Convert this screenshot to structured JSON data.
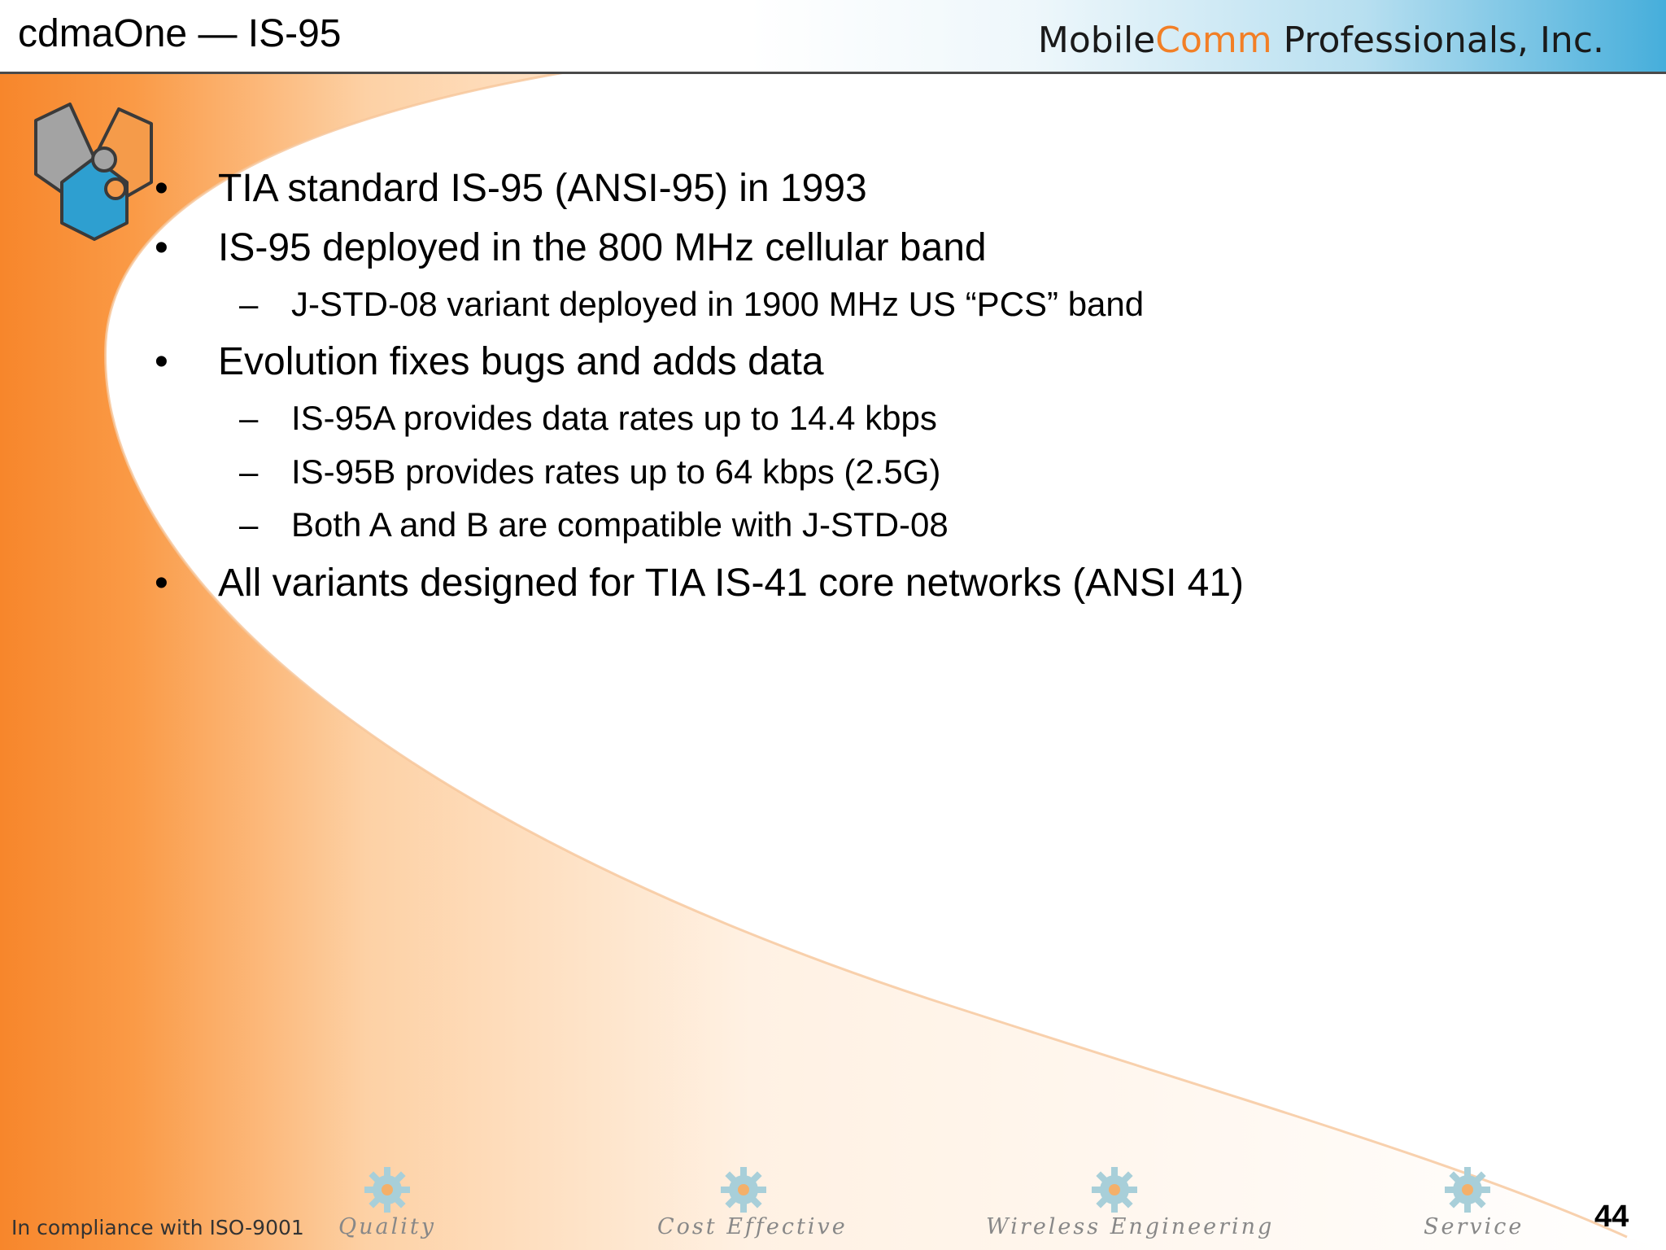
{
  "header": {
    "title": "cdmaOne — IS-95",
    "brand_prefix": "Mobile",
    "brand_accent": "Comm",
    "brand_suffix": " Professionals, Inc."
  },
  "bullets": [
    {
      "level": 1,
      "marker": "•",
      "text": "TIA standard IS-95 (ANSI-95) in 1993"
    },
    {
      "level": 1,
      "marker": "•",
      "text": "IS-95 deployed in the 800 MHz cellular band"
    },
    {
      "level": 2,
      "marker": "–",
      "text": "J-STD-08 variant deployed in 1900 MHz US “PCS” band"
    },
    {
      "level": 1,
      "marker": "•",
      "text": "Evolution fixes bugs and adds data"
    },
    {
      "level": 2,
      "marker": "–",
      "text": "IS-95A provides data rates up to 14.4 kbps"
    },
    {
      "level": 2,
      "marker": "–",
      "text": "IS-95B provides rates up to 64 kbps (2.5G)"
    },
    {
      "level": 2,
      "marker": "–",
      "text": "Both A and B are compatible with J-STD-08"
    },
    {
      "level": 1,
      "marker": "•",
      "text": "All variants designed for TIA IS-41 core networks (ANSI 41)"
    }
  ],
  "footer": {
    "compliance": "In compliance with ISO-9001",
    "labels": [
      "Quality",
      "Cost Effective",
      "Wireless Engineering",
      "Service"
    ],
    "page_number": "44"
  },
  "colors": {
    "accent_orange": "#f27f26",
    "accent_blue": "#2e9fd0",
    "puzzle_gray": "#9a9a9a"
  },
  "icons": [
    "puzzle-heart-icon",
    "gear-icon"
  ]
}
